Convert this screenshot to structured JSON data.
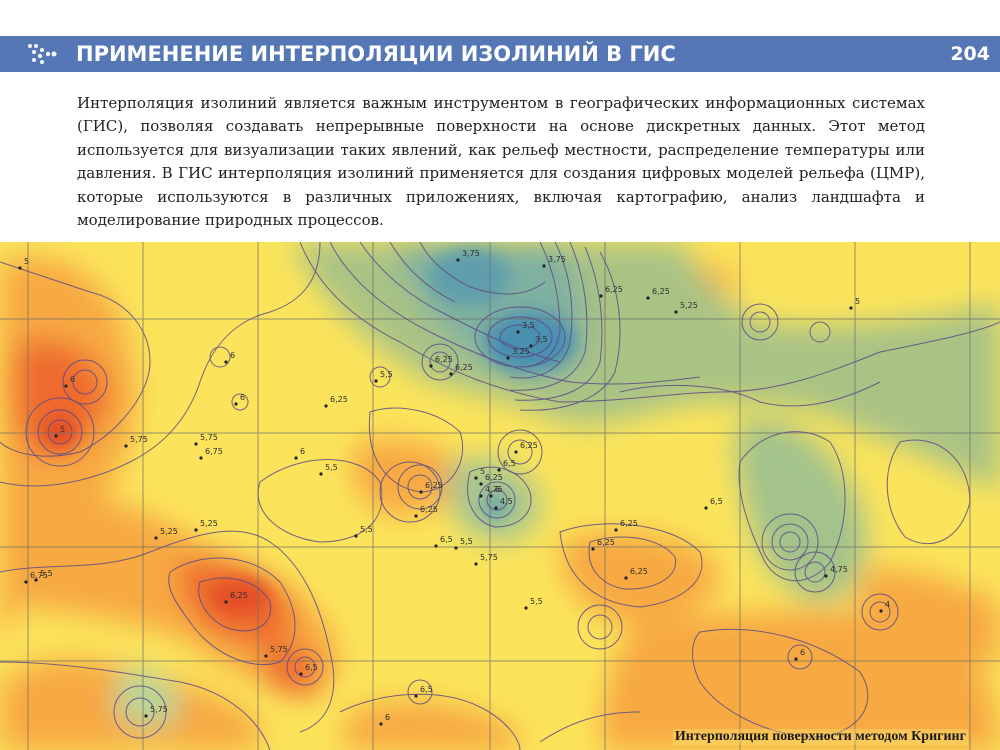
{
  "header": {
    "title": "ПРИМЕНЕНИЕ ИНТЕРПОЛЯЦИИ ИЗОЛИНИЙ В ГИС",
    "page_number": "204",
    "color": "#5577b6",
    "icon": "dots-arrow-icon"
  },
  "body": {
    "paragraph": "Интерполяция изолиний является важным инструментом в географических информационных системах (ГИС), позволяя создавать непрерывные поверхности на основе дискретных данных. Этот метод используется для визуализации таких явлений, как рельеф местности, распределение температуры или давления. В ГИС интерполяция изолиний применяется для создания цифровых моделей рельефа (ЦМР), которые используются в различных приложениях, включая картографию, анализ ландшафта и моделирование природных процессов."
  },
  "map": {
    "caption": "Интерполяция поверхности методом Кригинг",
    "colors": {
      "low": "#4a8fb0",
      "mid": "#a8c48a",
      "high_yellow": "#f8e85a",
      "high_orange": "#f7a943",
      "peak": "#ee6a2e"
    },
    "labels": [
      "3,75",
      "3,75",
      "3,5",
      "3,5",
      "3,25",
      "6,25",
      "6,25",
      "5,25",
      "6",
      "6",
      "6,25",
      "6,25",
      "5,5",
      "6,25",
      "6",
      "5",
      "5",
      "5,75",
      "5,75",
      "6,75",
      "5,25",
      "5,25",
      "6",
      "5,5",
      "6,25",
      "6,25",
      "6,5",
      "6,25",
      "6",
      "6,25",
      "5,75",
      "5,5",
      "6,25",
      "4,75",
      "4,5",
      "5",
      "6,25",
      "6,75",
      "5,5",
      "5,75",
      "4,75",
      "5,5",
      "6,25",
      "6,5",
      "5,5",
      "6,25",
      "5,75",
      "6,5",
      "6",
      "6,5",
      "6",
      "5",
      "4",
      "6,5"
    ]
  }
}
